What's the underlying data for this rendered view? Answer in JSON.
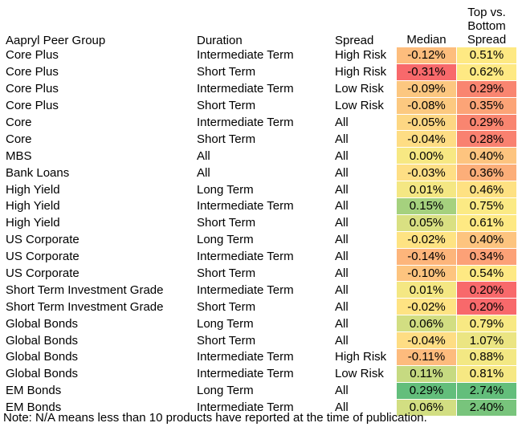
{
  "chart_data": {
    "type": "table",
    "columns": [
      "Aapryl Peer Group",
      "Duration",
      "Spread",
      "Median",
      "Top vs. Bottom Spread"
    ],
    "rows": [
      [
        "Core Plus",
        "Intermediate Term",
        "High Risk",
        "-0.12%",
        "0.51%"
      ],
      [
        "Core Plus",
        "Short Term",
        "High Risk",
        "-0.31%",
        "0.62%"
      ],
      [
        "Core Plus",
        "Intermediate Term",
        "Low Risk",
        "-0.09%",
        "0.29%"
      ],
      [
        "Core Plus",
        "Short Term",
        "Low Risk",
        "-0.08%",
        "0.35%"
      ],
      [
        "Core",
        "Intermediate Term",
        "All",
        "-0.05%",
        "0.29%"
      ],
      [
        "Core",
        "Short Term",
        "All",
        "-0.04%",
        "0.28%"
      ],
      [
        "MBS",
        "All",
        "All",
        "0.00%",
        "0.40%"
      ],
      [
        "Bank Loans",
        "All",
        "All",
        "-0.03%",
        "0.36%"
      ],
      [
        "High Yield",
        "Long Term",
        "All",
        "0.01%",
        "0.46%"
      ],
      [
        "High Yield",
        "Intermediate Term",
        "All",
        "0.15%",
        "0.75%"
      ],
      [
        "High Yield",
        "Short Term",
        "All",
        "0.05%",
        "0.61%"
      ],
      [
        "US Corporate",
        "Long Term",
        "All",
        "-0.02%",
        "0.40%"
      ],
      [
        "US Corporate",
        "Intermediate Term",
        "All",
        "-0.14%",
        "0.34%"
      ],
      [
        "US Corporate",
        "Short Term",
        "All",
        "-0.10%",
        "0.54%"
      ],
      [
        "Short Term Investment Grade",
        "Intermediate Term",
        "All",
        "0.01%",
        "0.20%"
      ],
      [
        "Short Term Investment Grade",
        "Short Term",
        "All",
        "-0.02%",
        "0.20%"
      ],
      [
        "Global Bonds",
        "Long Term",
        "All",
        "0.06%",
        "0.79%"
      ],
      [
        "Global Bonds",
        "Short Term",
        "All",
        "-0.04%",
        "1.07%"
      ],
      [
        "Global Bonds",
        "Intermediate Term",
        "High Risk",
        "-0.11%",
        "0.88%"
      ],
      [
        "Global Bonds",
        "Intermediate Term",
        "Low Risk",
        "0.11%",
        "0.81%"
      ],
      [
        "EM Bonds",
        "Long Term",
        "All",
        "0.29%",
        "2.74%"
      ],
      [
        "EM Bonds",
        "Intermediate Term",
        "All",
        "0.06%",
        "2.40%"
      ]
    ],
    "median_values": [
      -0.12,
      -0.31,
      -0.09,
      -0.08,
      -0.05,
      -0.04,
      0.0,
      -0.03,
      0.01,
      0.15,
      0.05,
      -0.02,
      -0.14,
      -0.1,
      0.01,
      -0.02,
      0.06,
      -0.04,
      -0.11,
      0.11,
      0.29,
      0.06
    ],
    "spread_values": [
      0.51,
      0.62,
      0.29,
      0.35,
      0.29,
      0.28,
      0.4,
      0.36,
      0.46,
      0.75,
      0.61,
      0.4,
      0.34,
      0.54,
      0.2,
      0.2,
      0.79,
      1.07,
      0.88,
      0.81,
      2.74,
      2.4
    ],
    "median_cell_colors": [
      "#fdbd7d",
      "#f8696b",
      "#fcc780",
      "#fcc980",
      "#fdd783",
      "#fedd84",
      "#f7e883",
      "#fedf85",
      "#f4e783",
      "#a5d17e",
      "#d9e082",
      "#fee383",
      "#fdb57b",
      "#fdc47f",
      "#f4e783",
      "#fee383",
      "#d2de82",
      "#fedd84",
      "#fdbb7d",
      "#c6da81",
      "#63be7b",
      "#d2de82"
    ],
    "spread_cell_colors": [
      "#fee983",
      "#fee983",
      "#f98570",
      "#fca477",
      "#f98570",
      "#f98170",
      "#fdc47f",
      "#fcae79",
      "#fee182",
      "#fbea84",
      "#fee983",
      "#fdc47f",
      "#fca177",
      "#fee983",
      "#f8696b",
      "#f8696b",
      "#f8e983",
      "#ebe582",
      "#f3e883",
      "#f6e883",
      "#63be7b",
      "#78c47c"
    ]
  },
  "note": "Note: N/A means less than 10 products have reported at the time of publication."
}
